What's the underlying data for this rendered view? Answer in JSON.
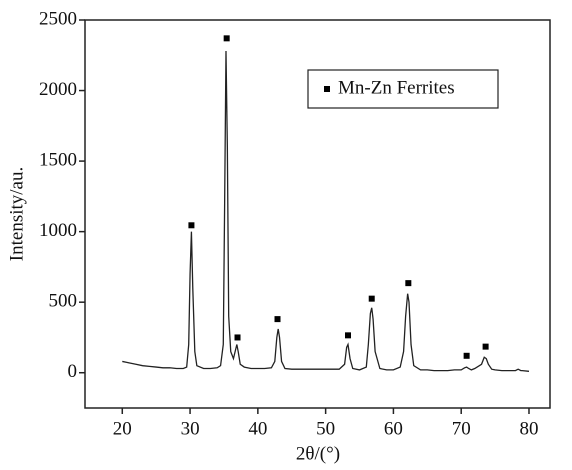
{
  "chart_data": {
    "type": "line",
    "x_label": "2θ/(°)",
    "y_label": "Intensity/au.",
    "xlim": [
      14.5,
      83.1
    ],
    "ylim": [
      -250,
      2500
    ],
    "xticks": [
      20,
      30,
      40,
      50,
      60,
      70,
      80
    ],
    "yticks": [
      0,
      500,
      1000,
      1500,
      2000,
      2500
    ],
    "legend": "upper right",
    "series": [
      {
        "color": "#222222",
        "x": [
          20,
          21,
          22,
          23,
          24,
          25,
          26,
          27,
          28,
          29,
          29.5,
          29.8,
          30.0,
          30.2,
          30.4,
          30.7,
          31,
          32,
          33,
          34,
          34.5,
          34.9,
          35.1,
          35.3,
          35.5,
          35.7,
          36,
          36.4,
          36.7,
          36.9,
          37.1,
          37.4,
          38,
          39,
          40,
          41,
          42,
          42.5,
          42.8,
          43.0,
          43.2,
          43.5,
          44,
          45,
          46,
          47,
          48,
          49,
          50,
          51,
          52,
          52.8,
          53.1,
          53.3,
          53.6,
          54,
          55,
          56,
          56.3,
          56.6,
          56.8,
          57.0,
          57.3,
          58,
          59,
          60,
          61,
          61.5,
          61.8,
          62.1,
          62.3,
          62.6,
          63,
          64,
          65,
          66,
          67,
          68,
          69,
          70,
          70.5,
          70.8,
          71.1,
          71.5,
          72,
          73,
          73.4,
          73.7,
          74,
          74.5,
          75,
          76,
          77,
          78,
          78.4,
          78.8,
          79,
          80
        ],
        "values": [
          80,
          70,
          60,
          50,
          45,
          40,
          35,
          35,
          30,
          30,
          40,
          200,
          700,
          1000,
          600,
          150,
          50,
          30,
          30,
          35,
          50,
          200,
          1200,
          2280,
          1600,
          400,
          150,
          100,
          160,
          200,
          150,
          60,
          40,
          30,
          30,
          30,
          35,
          80,
          250,
          310,
          250,
          80,
          30,
          25,
          25,
          25,
          25,
          25,
          25,
          25,
          25,
          60,
          180,
          200,
          100,
          30,
          20,
          40,
          200,
          420,
          460,
          380,
          150,
          30,
          20,
          20,
          40,
          150,
          400,
          560,
          500,
          200,
          50,
          20,
          20,
          15,
          15,
          15,
          20,
          20,
          35,
          40,
          30,
          20,
          30,
          60,
          110,
          100,
          60,
          25,
          20,
          15,
          15,
          15,
          25,
          15,
          15,
          10
        ]
      },
      {
        "name": "Mn-Zn Ferrites",
        "color": "#000000",
        "marker": "square",
        "x": [
          30.2,
          35.4,
          37.0,
          42.9,
          53.3,
          56.8,
          62.2,
          70.8,
          73.6
        ],
        "values": [
          1045,
          2370,
          250,
          380,
          265,
          525,
          635,
          120,
          185
        ]
      }
    ]
  }
}
